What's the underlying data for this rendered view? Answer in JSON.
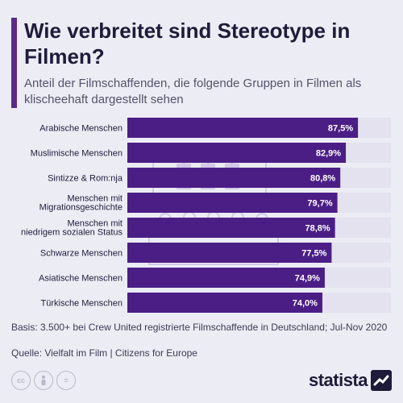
{
  "header": {
    "title": "Wie verbreitet sind Stereotype in Filmen?",
    "subtitle": "Anteil der Filmschaffenden, die folgende Gruppen in Filmen als klischeehaft dargestellt sehen"
  },
  "chart_data": {
    "type": "bar",
    "orientation": "horizontal",
    "categories": [
      "Arabische Menschen",
      "Muslimische Menschen",
      "Sintizze & Rom:nja",
      "Menschen mit Migrationsgeschichte",
      "Menschen mit niedrigem sozialen Status",
      "Schwarze Menschen",
      "Asiatische Menschen",
      "Türkische Menschen"
    ],
    "category_lines": [
      [
        "Arabische Menschen"
      ],
      [
        "Muslimische Menschen"
      ],
      [
        "Sintizze & Rom:nja"
      ],
      [
        "Menschen mit",
        "Migrationsgeschichte"
      ],
      [
        "Menschen mit",
        "niedrigem sozialen Status"
      ],
      [
        "Schwarze Menschen"
      ],
      [
        "Asiatische Menschen"
      ],
      [
        "Türkische Menschen"
      ]
    ],
    "values": [
      87.5,
      82.9,
      80.8,
      79.7,
      78.8,
      77.5,
      74.9,
      74.0
    ],
    "value_labels": [
      "87,5%",
      "82,9%",
      "80,8%",
      "79,7%",
      "78,8%",
      "77,5%",
      "74,9%",
      "74,0%"
    ],
    "xlim": [
      0,
      100
    ],
    "grid": false,
    "colors": {
      "bar": "#4b1e86",
      "track": "#e3e2ee",
      "label": "#1e1b3a",
      "value_label": "#ffffff"
    }
  },
  "footer": {
    "basis": "Basis: 3.500+ bei Crew United registrierte Filmschaffende in Deutschland; Jul-Nov 2020",
    "source": "Quelle: Vielfalt im Film | Citizens for Europe",
    "logo": "statista",
    "icons": [
      "cc-icon",
      "person-icon",
      "no-derivatives-icon"
    ]
  }
}
